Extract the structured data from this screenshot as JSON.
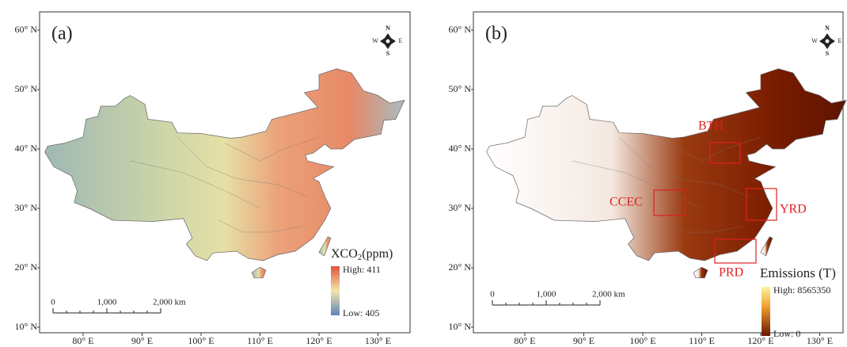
{
  "panels": [
    {
      "label": "(a)",
      "lat_labels": [
        "60° N",
        "50° N",
        "40° N",
        "30° N",
        "20° N",
        "10° N"
      ],
      "lon_labels": [
        "80° E",
        "90° E",
        "100° E",
        "110° E",
        "120° E",
        "130° E"
      ],
      "compass": {
        "n": "N",
        "s": "S",
        "w": "W",
        "e": "E"
      },
      "scale": [
        "0",
        "1,000",
        "2,000 km"
      ],
      "legend": {
        "title": "XCO",
        "title_sub": "2",
        "title_unit": "(ppm)",
        "high": "High: 411",
        "low": "Low: 405"
      }
    },
    {
      "label": "(b)",
      "lat_labels": [
        "60° N",
        "50° N",
        "40° N",
        "30° N",
        "20° N",
        "10° N"
      ],
      "lon_labels": [
        "80° E",
        "90° E",
        "100° E",
        "110° E",
        "120° E",
        "130° E"
      ],
      "compass": {
        "n": "N",
        "s": "S",
        "w": "W",
        "e": "E"
      },
      "scale": [
        "0",
        "1,000",
        "2,000 km"
      ],
      "regions": [
        "BTH",
        "CCEC",
        "YRD",
        "PRD"
      ],
      "legend": {
        "title": "Emissions (T)",
        "high": "High: 8565350",
        "low": "Low: 0"
      }
    }
  ]
}
